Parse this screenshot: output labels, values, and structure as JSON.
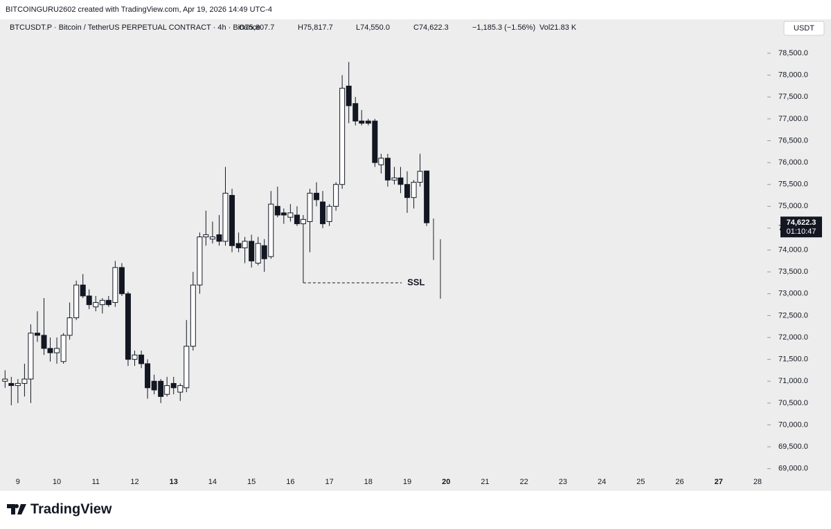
{
  "header": "BITCOINGURU2602 created with TradingView.com, Apr 19, 2026 14:49 UTC-4",
  "legend": {
    "symbol": "BTCUSDT.P · Bitcoin / TetherUS PERPETUAL CONTRACT · 4h · Binance",
    "open": "O75,807.7",
    "high": "H75,817.7",
    "low": "L74,550.0",
    "close": "C74,622.3",
    "change": "−1,185.3 (−1.56%)",
    "volume": "Vol21.83 K"
  },
  "currency_button": "USDT",
  "brand": "TradingView",
  "chart_data": {
    "type": "candlestick",
    "x": [
      8.67,
      8.83,
      9,
      9.17,
      9.33,
      9.5,
      9.67,
      9.83,
      10,
      10.17,
      10.33,
      10.5,
      10.67,
      10.83,
      11,
      11.17,
      11.33,
      11.5,
      11.67,
      11.83,
      12,
      12.17,
      12.33,
      12.5,
      12.67,
      12.83,
      13,
      13.17,
      13.33,
      13.5,
      13.67,
      13.83,
      14,
      14.17,
      14.33,
      14.5,
      14.67,
      14.83,
      15,
      15.17,
      15.33,
      15.5,
      15.67,
      15.83,
      16,
      16.17,
      16.33,
      16.5,
      16.67,
      16.83,
      17,
      17.17,
      17.33,
      17.5,
      17.67,
      17.83,
      18,
      18.17,
      18.33,
      18.5,
      18.67,
      18.83,
      19,
      19.17,
      19.33,
      19.5
    ],
    "open": [
      71000,
      70950,
      70900,
      70950,
      71050,
      72100,
      72050,
      71750,
      71650,
      71450,
      72050,
      72450,
      73200,
      72950,
      72700,
      72750,
      72850,
      72800,
      73600,
      73000,
      71500,
      71600,
      71400,
      71000,
      71000,
      70700,
      70950,
      70750,
      70850,
      71800,
      73200,
      74300,
      74250,
      74350,
      74200,
      75250,
      74150,
      74050,
      74200,
      73700,
      74100,
      73850,
      75000,
      74850,
      74750,
      74800,
      74600,
      74650,
      75300,
      75100,
      74650,
      75000,
      75500,
      77750,
      77350,
      76950,
      76950,
      76950,
      75950,
      76100,
      75600,
      75650,
      75500,
      75200,
      75550,
      75807.7
    ],
    "high": [
      71250,
      71100,
      71050,
      71400,
      72300,
      72600,
      72900,
      72000,
      72000,
      72100,
      72800,
      73300,
      73450,
      73100,
      72950,
      72900,
      72950,
      73750,
      73700,
      73050,
      71700,
      71700,
      71500,
      71150,
      71050,
      71100,
      71100,
      70950,
      72400,
      73500,
      74400,
      74900,
      74650,
      74800,
      75900,
      75400,
      74400,
      74300,
      74350,
      74300,
      74250,
      75350,
      75450,
      74950,
      75050,
      75000,
      74800,
      75400,
      75550,
      75350,
      75050,
      75550,
      78000,
      78300,
      77500,
      77200,
      77000,
      77000,
      76200,
      76200,
      75900,
      75900,
      75800,
      75600,
      76200,
      75817.7
    ],
    "low": [
      70850,
      70450,
      70500,
      70650,
      70500,
      71900,
      71600,
      71450,
      71400,
      71400,
      71950,
      72400,
      72900,
      72650,
      72600,
      72550,
      72700,
      72700,
      72950,
      71350,
      71350,
      71300,
      70600,
      70700,
      70500,
      70650,
      70700,
      70550,
      70750,
      71700,
      73000,
      74100,
      74150,
      74100,
      74100,
      73950,
      73950,
      73700,
      73600,
      73650,
      73500,
      73800,
      74750,
      74600,
      74650,
      74550,
      73250,
      73950,
      75000,
      74500,
      74550,
      74900,
      75400,
      76900,
      76850,
      76850,
      76850,
      75900,
      75750,
      75450,
      75500,
      75300,
      74850,
      74950,
      75450,
      74550
    ],
    "close": [
      71050,
      70900,
      70950,
      71050,
      72100,
      72050,
      71750,
      71650,
      71750,
      72050,
      72450,
      73200,
      72950,
      72750,
      72800,
      72850,
      72750,
      73600,
      73000,
      71500,
      71600,
      71400,
      70850,
      70800,
      70650,
      70900,
      70850,
      70900,
      71800,
      73200,
      74300,
      74350,
      74300,
      74200,
      75300,
      74100,
      74050,
      74200,
      73750,
      74150,
      73800,
      75050,
      74800,
      74800,
      74850,
      74600,
      74700,
      75300,
      75150,
      74600,
      75000,
      75500,
      77700,
      77300,
      76950,
      76900,
      76900,
      76000,
      76100,
      75600,
      75650,
      75500,
      75200,
      75550,
      75800,
      74622.3
    ],
    "up_color": "#ffffff",
    "down_color": "#131722",
    "wick_color": "#131722",
    "xlim": [
      8.54,
      28.25
    ],
    "xticks": [
      9,
      10,
      11,
      12,
      13,
      14,
      15,
      16,
      17,
      18,
      19,
      20,
      21,
      22,
      23,
      24,
      25,
      26,
      27,
      28
    ],
    "xticks_bold": [
      13,
      20,
      27
    ],
    "ylim": [
      68490,
      79275
    ],
    "yticks": [
      {
        "value": 69000,
        "label": "69,000.0"
      },
      {
        "value": 69500,
        "label": "69,500.0"
      },
      {
        "value": 70000,
        "label": "70,000.0"
      },
      {
        "value": 70500,
        "label": "70,500.0"
      },
      {
        "value": 71000,
        "label": "71,000.0"
      },
      {
        "value": 71500,
        "label": "71,500.0"
      },
      {
        "value": 72000,
        "label": "72,000.0"
      },
      {
        "value": 72500,
        "label": "72,500.0"
      },
      {
        "value": 73000,
        "label": "73,000.0"
      },
      {
        "value": 73500,
        "label": "73,500.0"
      },
      {
        "value": 74000,
        "label": "74,000.0"
      },
      {
        "value": 74500,
        "label": "74,500.0"
      },
      {
        "value": 75000,
        "label": "75,000.0"
      },
      {
        "value": 75500,
        "label": "75,500.0"
      },
      {
        "value": 76000,
        "label": "76,000.0"
      },
      {
        "value": 76500,
        "label": "76,500.0"
      },
      {
        "value": 77000,
        "label": "77,000.0"
      },
      {
        "value": 77500,
        "label": "77,500.0"
      },
      {
        "value": 78000,
        "label": "78,000.0"
      },
      {
        "value": 78500,
        "label": "78,500.0"
      }
    ],
    "grid": false,
    "last_price": {
      "value": 74622.3,
      "label": "74,622.3",
      "countdown": "01:10:47"
    },
    "annotation": {
      "label": "SSL",
      "price": 73250,
      "x": [
        16.33,
        18.86
      ]
    }
  }
}
